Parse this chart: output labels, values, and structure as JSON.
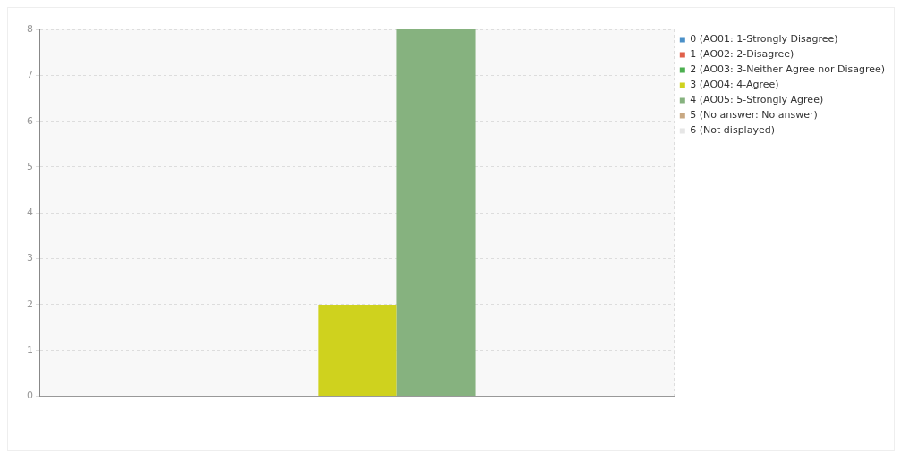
{
  "chart_data": {
    "type": "bar",
    "categories": [
      null
    ],
    "series": [
      {
        "name": "0 (AO01: 1-Strongly Disagree)",
        "color": "#4a90c8",
        "values": [
          0
        ]
      },
      {
        "name": "1 (AO02: 2-Disagree)",
        "color": "#e0604a",
        "values": [
          0
        ]
      },
      {
        "name": "2 (AO03: 3-Neither Agree nor Disagree)",
        "color": "#4caf50",
        "values": [
          0
        ]
      },
      {
        "name": "3 (AO04: 4-Agree)",
        "color": "#cfd21e",
        "values": [
          2
        ]
      },
      {
        "name": "4 (AO05: 5-Strongly Agree)",
        "color": "#86b27f",
        "values": [
          8
        ]
      },
      {
        "name": "5 (No answer: No answer)",
        "color": "#c8a882",
        "values": [
          0
        ]
      },
      {
        "name": "6 (Not displayed)",
        "color": "#e6e6e6",
        "values": [
          0
        ]
      }
    ],
    "ylim": [
      0,
      8
    ],
    "yticks": [
      0,
      1,
      2,
      3,
      4,
      5,
      6,
      7,
      8
    ],
    "grid": true,
    "legend": "top right"
  }
}
